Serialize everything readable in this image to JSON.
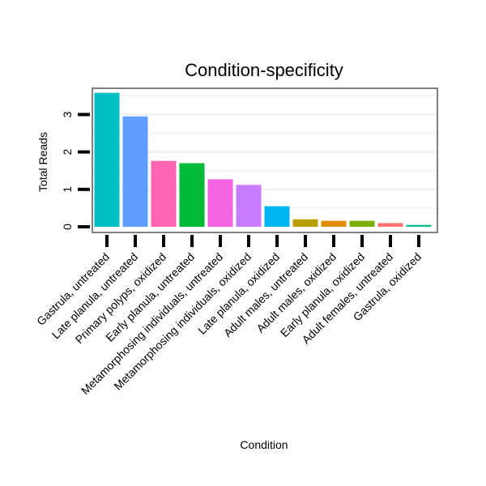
{
  "chart_data": {
    "type": "bar",
    "title": "Condition-specificity",
    "xlabel": "Condition",
    "ylabel": "Total Reads",
    "ylim": [
      0,
      3.55
    ],
    "yticks": [
      0,
      1,
      2,
      3
    ],
    "grid": true,
    "categories": [
      "Gastrula, untreated",
      "Late planula, untreated",
      "Primary polyps, oxidized",
      "Early planula, untreated",
      "Metamorphosing individuals, untreated",
      "Metamorphosing individuals, oxidized",
      "Late planula, oxidized",
      "Adult males, untreated",
      "Adult males, oxidized",
      "Early planula, oxidized",
      "Adult females, untreated",
      "Gastrula, oxidized"
    ],
    "values": [
      3.58,
      2.95,
      1.76,
      1.7,
      1.27,
      1.12,
      0.55,
      0.2,
      0.16,
      0.16,
      0.1,
      0.05
    ],
    "colors": [
      "#00BFC4",
      "#619CFF",
      "#FF64B0",
      "#00BA38",
      "#F564E3",
      "#C77CFF",
      "#00B4F0",
      "#B79F00",
      "#DE8C00",
      "#7CAE00",
      "#F8766D",
      "#00C08B"
    ]
  }
}
